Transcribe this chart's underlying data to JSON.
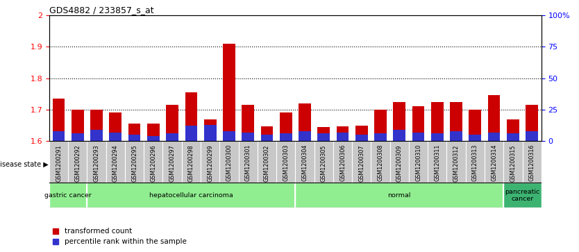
{
  "title": "GDS4882 / 233857_s_at",
  "samples": [
    "GSM1200291",
    "GSM1200292",
    "GSM1200293",
    "GSM1200294",
    "GSM1200295",
    "GSM1200296",
    "GSM1200297",
    "GSM1200298",
    "GSM1200299",
    "GSM1200300",
    "GSM1200301",
    "GSM1200302",
    "GSM1200303",
    "GSM1200304",
    "GSM1200305",
    "GSM1200306",
    "GSM1200307",
    "GSM1200308",
    "GSM1200309",
    "GSM1200310",
    "GSM1200311",
    "GSM1200312",
    "GSM1200313",
    "GSM1200314",
    "GSM1200315",
    "GSM1200316"
  ],
  "transformed_count": [
    1.735,
    1.7,
    1.7,
    1.69,
    1.655,
    1.655,
    1.715,
    1.755,
    1.668,
    1.91,
    1.715,
    1.648,
    1.69,
    1.72,
    1.645,
    1.648,
    1.65,
    1.7,
    1.725,
    1.71,
    1.725,
    1.725,
    1.7,
    1.745,
    1.67,
    1.715
  ],
  "percentile_rank": [
    8,
    6,
    9,
    7,
    5,
    4,
    6,
    12,
    13,
    8,
    7,
    5,
    6,
    8,
    6,
    7,
    5,
    6,
    9,
    7,
    6,
    8,
    5,
    7,
    6,
    8
  ],
  "group_configs": [
    {
      "label": "gastric cancer",
      "start": 0,
      "end": 2,
      "dark": false
    },
    {
      "label": "hepatocellular carcinoma",
      "start": 2,
      "end": 13,
      "dark": false
    },
    {
      "label": "normal",
      "start": 13,
      "end": 24,
      "dark": false
    },
    {
      "label": "pancreatic\ncancer",
      "start": 24,
      "end": 26,
      "dark": true
    }
  ],
  "group_dividers": [
    2,
    13,
    24
  ],
  "ylim_left": [
    1.6,
    2.0
  ],
  "ylim_right": [
    0,
    100
  ],
  "yticks_left": [
    1.6,
    1.7,
    1.8,
    1.9,
    2.0
  ],
  "ytick_labels_left": [
    "1.6",
    "1.7",
    "1.8",
    "1.9",
    "2"
  ],
  "yticks_right": [
    0,
    25,
    50,
    75,
    100
  ],
  "ytick_labels_right": [
    "0",
    "25",
    "50",
    "75",
    "100%"
  ],
  "bar_color_red": "#CC0000",
  "bar_color_blue": "#3333CC",
  "baseline": 1.6,
  "percentile_max": 100,
  "grid_yticks": [
    1.7,
    1.8,
    1.9
  ],
  "grid_color": "#000000",
  "green_light": "#90EE90",
  "green_dark": "#3CB371",
  "tick_bg_color": "#C8C8C8",
  "legend_red_label": "transformed count",
  "legend_blue_label": "percentile rank within the sample",
  "disease_state_label": "disease state",
  "bar_width": 0.65
}
